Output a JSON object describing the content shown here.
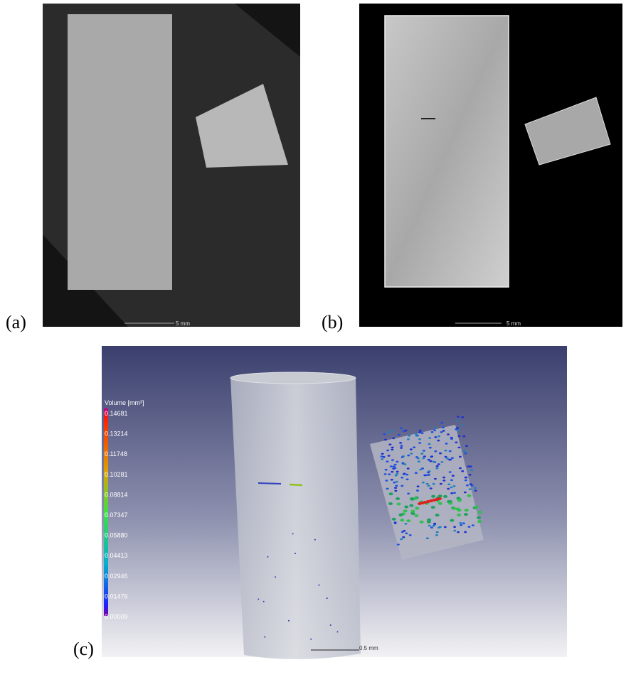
{
  "panels": [
    {
      "label": "(a)",
      "scale": "5 mm"
    },
    {
      "label": "(b)",
      "scale": "5 mm"
    },
    {
      "label": "(c)",
      "scale": "0.5 mm",
      "legend_title": "Volume [mm³]",
      "legend_ticks": [
        "0.14681",
        "0.13214",
        "0.11748",
        "0.10281",
        "0.08814",
        "0.07347",
        "0.05880",
        "0.04413",
        "0.02946",
        "0.01476",
        "0.00009"
      ]
    }
  ]
}
